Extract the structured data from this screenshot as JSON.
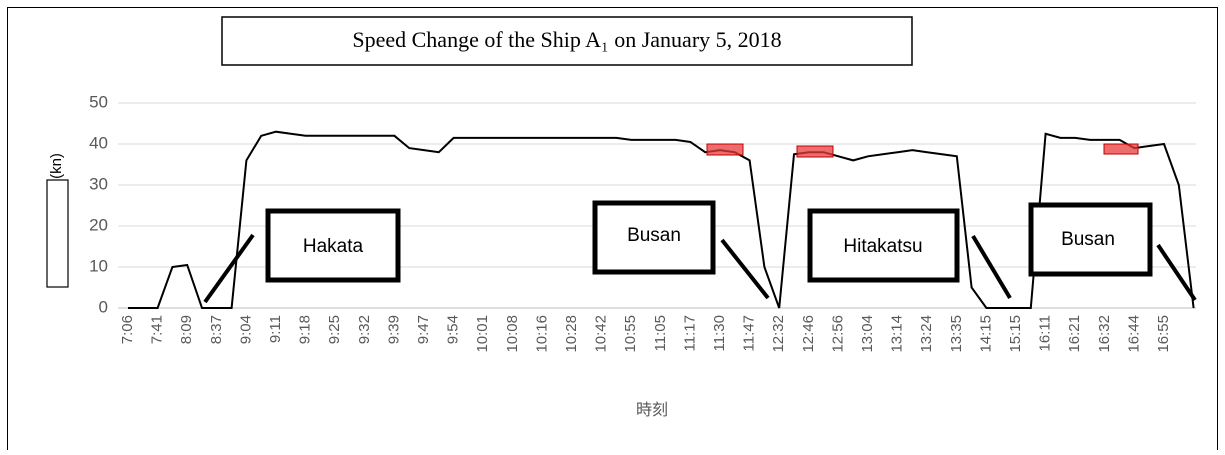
{
  "chart_data": {
    "type": "line",
    "title": "Speed Change of the Ship A₁ on January 5, 2018",
    "x_label": "時刻",
    "y_label": "(kn)",
    "categories": [
      "7:06",
      null,
      "7:41",
      null,
      "8:09",
      null,
      "8:37",
      null,
      "9:04",
      null,
      "9:11",
      null,
      "9:18",
      null,
      "9:25",
      null,
      "9:32",
      null,
      "9:39",
      null,
      "9:47",
      null,
      "9:54",
      null,
      "10:01",
      null,
      "10:08",
      null,
      "10:16",
      null,
      "10:28",
      null,
      "10:42",
      null,
      "10:55",
      null,
      "11:05",
      null,
      "11:17",
      null,
      "11:30",
      null,
      "11:47",
      null,
      "12:32",
      null,
      "12:46",
      null,
      "12:56",
      null,
      "13:04",
      null,
      "13:14",
      null,
      "13:24",
      null,
      "13:35",
      null,
      "14:15",
      null,
      "15:15",
      null,
      "16:11",
      null,
      "16:21",
      null,
      "16:32",
      null,
      "16:44",
      null,
      "16:55",
      null,
      null
    ],
    "series": [
      {
        "name": "Speed",
        "color": "#000000",
        "values": [
          0,
          0,
          0,
          10,
          10.5,
          0,
          0,
          0,
          36,
          42,
          43,
          42.5,
          42,
          42,
          42,
          42,
          42,
          42,
          42,
          39,
          38.5,
          38,
          41.5,
          41.5,
          41.5,
          41.5,
          41.5,
          41.5,
          41.5,
          41.5,
          41.5,
          41.5,
          41.5,
          41.5,
          41,
          41,
          41,
          41,
          40.5,
          38,
          38.5,
          38,
          36,
          10,
          0,
          37.5,
          38,
          38,
          37,
          36,
          37,
          37.5,
          38,
          38.5,
          38,
          37.5,
          37,
          5,
          0,
          0,
          0,
          0,
          42.5,
          41.5,
          41.5,
          41,
          41,
          41,
          39,
          39.5,
          40,
          30,
          0
        ]
      }
    ],
    "ylim": [
      0,
      50
    ],
    "yticks": [
      0,
      10,
      20,
      30,
      40,
      50
    ],
    "grid": true,
    "annotations": [
      "Hakata",
      "Busan",
      "Hitakatsu",
      "Busan"
    ]
  }
}
